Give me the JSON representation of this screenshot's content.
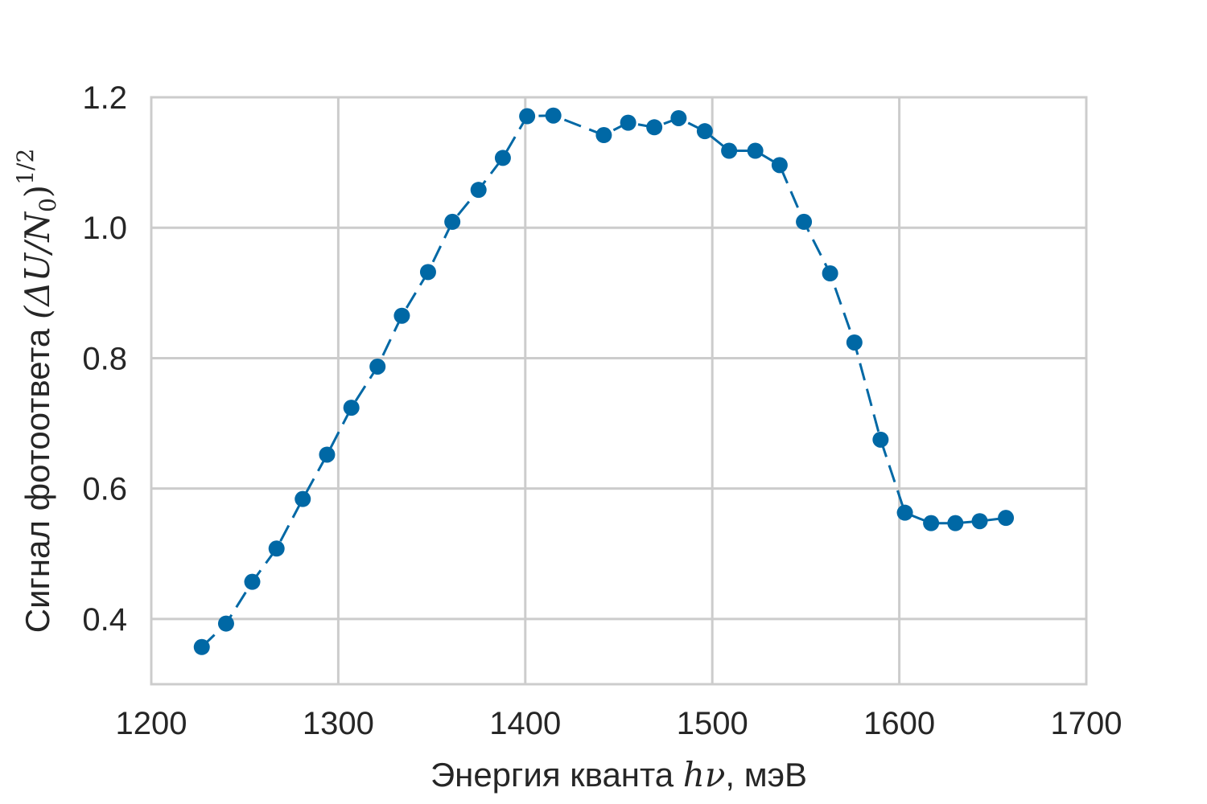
{
  "chart_data": {
    "type": "line",
    "title": "",
    "xlabel": "Энергия кванта hν, мэВ",
    "xlabel_text": "Энергия кванта ",
    "xlabel_math": "hν",
    "xlabel_unit": ", мэВ",
    "ylabel": "Сигнал фотоответа (ΔU/N₀)^1/2",
    "ylabel_text": "Сигнал фотоответа ",
    "ylabel_math": "(ΔU/N",
    "ylabel_sub": "0",
    "ylabel_close": ")",
    "ylabel_sup": "1/2",
    "xlim": [
      1200,
      1700
    ],
    "ylim": [
      0.3,
      1.2
    ],
    "grid": true,
    "legend": "none",
    "x_ticks": [
      1200,
      1300,
      1400,
      1500,
      1600,
      1700
    ],
    "x_tick_labels": [
      "1200",
      "1300",
      "1400",
      "1500",
      "1600",
      "1700"
    ],
    "y_ticks": [
      0.4,
      0.6,
      0.8,
      1.0,
      1.2
    ],
    "y_tick_labels": [
      "0.4",
      "0.6",
      "0.8",
      "1.0",
      "1.2"
    ],
    "series": [
      {
        "color": "#0068a5",
        "marker": "circle",
        "line_style": "dashed",
        "x": [
          1227,
          1240,
          1254,
          1267,
          1281,
          1294,
          1307,
          1321,
          1334,
          1348,
          1361,
          1375,
          1388,
          1401,
          1415,
          1442,
          1455,
          1469,
          1482,
          1496,
          1509,
          1523,
          1536,
          1549,
          1563,
          1576,
          1590,
          1603,
          1617,
          1630,
          1643,
          1657
        ],
        "y": [
          0.357,
          0.393,
          0.457,
          0.508,
          0.584,
          0.652,
          0.724,
          0.787,
          0.865,
          0.932,
          1.009,
          1.058,
          1.107,
          1.171,
          1.172,
          1.142,
          1.161,
          1.154,
          1.168,
          1.148,
          1.118,
          1.118,
          1.096,
          1.009,
          0.93,
          0.824,
          0.675,
          0.563,
          0.547,
          0.547,
          0.55,
          0.555
        ]
      }
    ]
  }
}
